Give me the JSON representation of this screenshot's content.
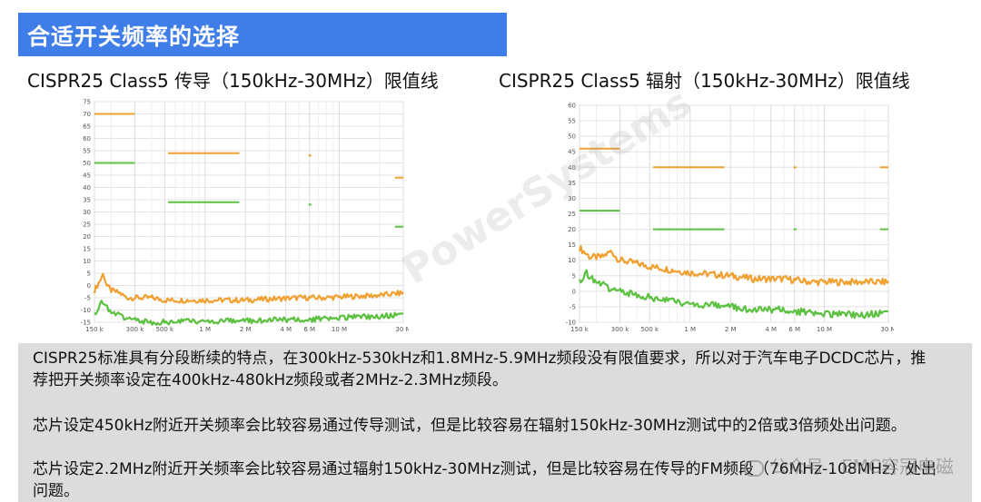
{
  "header": {
    "title": "合适开关频率的选择"
  },
  "chart_data": [
    {
      "type": "line",
      "title": "CISPR25 Class5 传导（150kHz-30MHz）限值线",
      "xlabel": "",
      "ylabel": "",
      "x_scale": "log",
      "xlim_hz": [
        150000,
        30000000
      ],
      "x_ticks": [
        {
          "label": "150 k",
          "hz": 150000
        },
        {
          "label": "300 k",
          "hz": 300000
        },
        {
          "label": "500 k",
          "hz": 500000
        },
        {
          "label": "1 M",
          "hz": 1000000
        },
        {
          "label": "2 M",
          "hz": 2000000
        },
        {
          "label": "4 M",
          "hz": 4000000
        },
        {
          "label": "6 M",
          "hz": 6000000
        },
        {
          "label": "10 M",
          "hz": 10000000
        },
        {
          "label": "30 M",
          "hz": 30000000
        }
      ],
      "ylim": [
        -15,
        75
      ],
      "y_ticks": [
        -15,
        -10,
        -5,
        0,
        5,
        10,
        15,
        20,
        25,
        30,
        35,
        40,
        45,
        50,
        55,
        60,
        65,
        70,
        75
      ],
      "grid": true,
      "limit_lines": [
        {
          "color": "#f0a030",
          "segments": [
            {
              "x": [
                150000,
                300000
              ],
              "y": 70
            },
            {
              "x": [
                530000,
                1800000
              ],
              "y": 54
            },
            {
              "x": [
                5900000,
                6200000
              ],
              "y": 53
            },
            {
              "x": [
                26000000,
                30000000
              ],
              "y": 44
            }
          ]
        },
        {
          "color": "#5cc040",
          "segments": [
            {
              "x": [
                150000,
                300000
              ],
              "y": 50
            },
            {
              "x": [
                530000,
                1800000
              ],
              "y": 34
            },
            {
              "x": [
                5900000,
                6200000
              ],
              "y": 33
            },
            {
              "x": [
                26000000,
                30000000
              ],
              "y": 24
            }
          ]
        }
      ],
      "series": [
        {
          "color": "#f0a030",
          "points": [
            [
              150000,
              -2
            ],
            [
              165000,
              2
            ],
            [
              175000,
              5
            ],
            [
              185000,
              0
            ],
            [
              200000,
              -2
            ],
            [
              230000,
              -3
            ],
            [
              260000,
              -5
            ],
            [
              300000,
              -5
            ],
            [
              400000,
              -5
            ],
            [
              500000,
              -6
            ],
            [
              700000,
              -6
            ],
            [
              1000000,
              -6
            ],
            [
              2000000,
              -6
            ],
            [
              3000000,
              -5.5
            ],
            [
              5000000,
              -5
            ],
            [
              8000000,
              -5
            ],
            [
              12000000,
              -4.5
            ],
            [
              20000000,
              -4
            ],
            [
              30000000,
              -3
            ]
          ]
        },
        {
          "color": "#5cc040",
          "points": [
            [
              150000,
              -12
            ],
            [
              165000,
              -8
            ],
            [
              175000,
              -6
            ],
            [
              185000,
              -9
            ],
            [
              200000,
              -11
            ],
            [
              250000,
              -13
            ],
            [
              300000,
              -14
            ],
            [
              400000,
              -15
            ],
            [
              500000,
              -15
            ],
            [
              700000,
              -14.5
            ],
            [
              1000000,
              -14.5
            ],
            [
              2000000,
              -14.5
            ],
            [
              3000000,
              -14
            ],
            [
              5000000,
              -14
            ],
            [
              8000000,
              -13.5
            ],
            [
              12000000,
              -13
            ],
            [
              20000000,
              -12.5
            ],
            [
              30000000,
              -12
            ]
          ]
        }
      ]
    },
    {
      "type": "line",
      "title": "CISPR25 Class5 辐射（150kHz-30MHz）限值线",
      "xlabel": "",
      "ylabel": "",
      "x_scale": "log",
      "xlim_hz": [
        150000,
        30000000
      ],
      "x_ticks": [
        {
          "label": "150 k",
          "hz": 150000
        },
        {
          "label": "300 k",
          "hz": 300000
        },
        {
          "label": "500 k",
          "hz": 500000
        },
        {
          "label": "1 M",
          "hz": 1000000
        },
        {
          "label": "2 M",
          "hz": 2000000
        },
        {
          "label": "4 M",
          "hz": 4000000
        },
        {
          "label": "6 M",
          "hz": 6000000
        },
        {
          "label": "10 M",
          "hz": 10000000
        },
        {
          "label": "30 M",
          "hz": 30000000
        }
      ],
      "ylim": [
        -10,
        60
      ],
      "y_ticks": [
        -10,
        -5,
        0,
        5,
        10,
        15,
        20,
        25,
        30,
        35,
        40,
        45,
        50,
        55,
        60
      ],
      "grid": true,
      "limit_lines": [
        {
          "color": "#f0a030",
          "segments": [
            {
              "x": [
                150000,
                300000
              ],
              "y": 46
            },
            {
              "x": [
                530000,
                1800000
              ],
              "y": 40
            },
            {
              "x": [
                5900000,
                6200000
              ],
              "y": 40
            },
            {
              "x": [
                26000000,
                30000000
              ],
              "y": 40
            }
          ]
        },
        {
          "color": "#5cc040",
          "segments": [
            {
              "x": [
                150000,
                300000
              ],
              "y": 26
            },
            {
              "x": [
                530000,
                1800000
              ],
              "y": 20
            },
            {
              "x": [
                5900000,
                6200000
              ],
              "y": 20
            },
            {
              "x": [
                26000000,
                30000000
              ],
              "y": 20
            }
          ]
        }
      ],
      "series": [
        {
          "color": "#f0a030",
          "points": [
            [
              150000,
              14
            ],
            [
              180000,
              11
            ],
            [
              220000,
              11
            ],
            [
              260000,
              13
            ],
            [
              280000,
              11
            ],
            [
              300000,
              10
            ],
            [
              400000,
              9
            ],
            [
              500000,
              8
            ],
            [
              700000,
              7
            ],
            [
              1000000,
              6
            ],
            [
              2000000,
              5
            ],
            [
              3000000,
              4
            ],
            [
              5000000,
              4
            ],
            [
              8000000,
              3
            ],
            [
              12000000,
              3
            ],
            [
              20000000,
              3
            ],
            [
              30000000,
              3
            ]
          ]
        },
        {
          "color": "#5cc040",
          "points": [
            [
              150000,
              3
            ],
            [
              170000,
              6
            ],
            [
              185000,
              4
            ],
            [
              200000,
              3
            ],
            [
              250000,
              1
            ],
            [
              300000,
              0
            ],
            [
              400000,
              -1
            ],
            [
              500000,
              -2
            ],
            [
              700000,
              -3
            ],
            [
              1000000,
              -4
            ],
            [
              2000000,
              -5
            ],
            [
              3000000,
              -6
            ],
            [
              5000000,
              -6
            ],
            [
              8000000,
              -7
            ],
            [
              12000000,
              -7.5
            ],
            [
              20000000,
              -7.5
            ],
            [
              30000000,
              -7
            ]
          ]
        }
      ]
    }
  ],
  "notes": {
    "p1": "CISPR25标准具有分段断续的特点，在300kHz-530kHz和1.8MHz-5.9MHz频段没有限值要求，所以对于汽车电子DCDC芯片，推荐把开关频率设定在400kHz-480kHz频段或者2MHz-2.3MHz频段。",
    "p2": "芯片设定450kHz附近开关频率会比较容易通过传导测试，但是比较容易在辐射150kHz-30MHz测试中的2倍或3倍频处出问题。",
    "p3": "芯片设定2.2MHz附近开关频率会比较容易通过辐射150kHz-30MHz测试，但是比较容易在传导的FM频段（76MHz-108MHz）处出问题。"
  },
  "watermark": {
    "text": "公众号 · EMC容冠电磁",
    "bg_text": "PowerSystems"
  }
}
